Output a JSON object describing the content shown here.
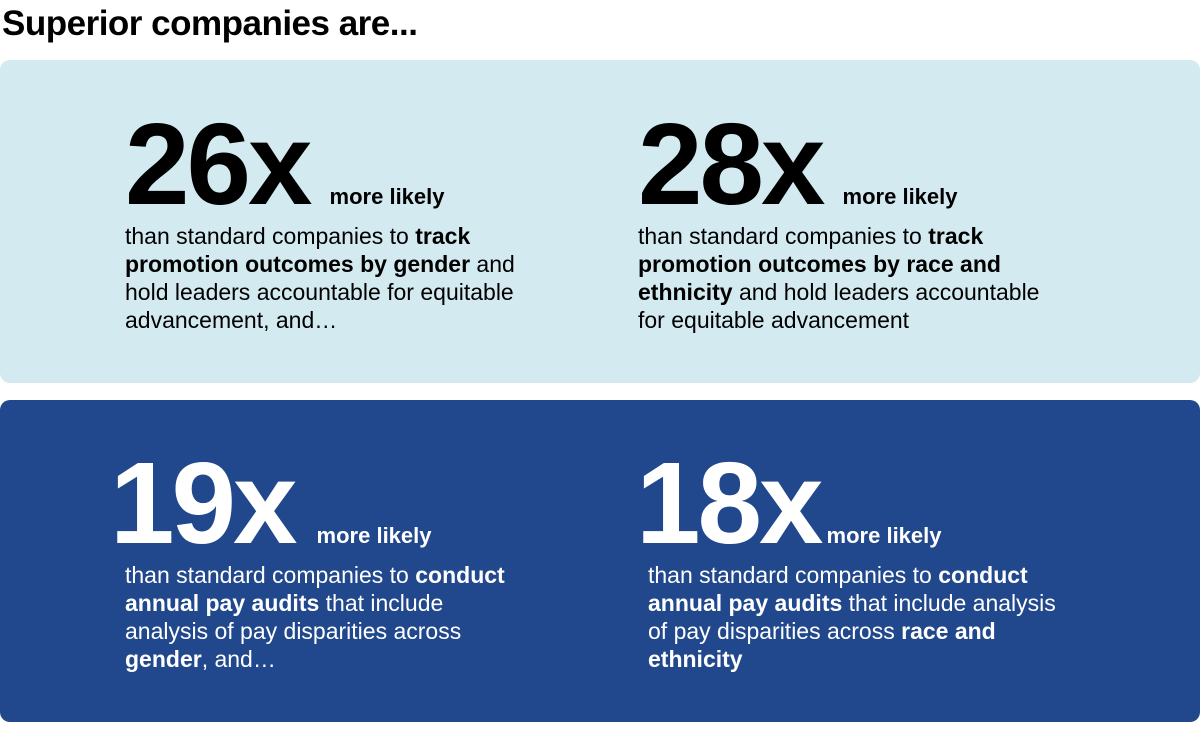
{
  "title": "Superior companies are...",
  "colors": {
    "light_panel": "#d2eaf0",
    "dark_panel": "#21488c"
  },
  "stats": [
    {
      "value": "26x",
      "suffix": "more likely",
      "lines": [
        [
          {
            "t": "than standard companies to ",
            "b": false
          },
          {
            "t": "track",
            "b": true
          }
        ],
        [
          {
            "t": "promotion outcomes by gender",
            "b": true
          },
          {
            "t": " and",
            "b": false
          }
        ],
        [
          {
            "t": "hold leaders accountable for equitable",
            "b": false
          }
        ],
        [
          {
            "t": "advancement, and…",
            "b": false
          }
        ]
      ]
    },
    {
      "value": "28x",
      "suffix": "more likely",
      "lines": [
        [
          {
            "t": "than standard companies to ",
            "b": false
          },
          {
            "t": "track",
            "b": true
          }
        ],
        [
          {
            "t": "promotion outcomes by race and",
            "b": true
          }
        ],
        [
          {
            "t": "ethnicity",
            "b": true
          },
          {
            "t": " and hold leaders accountable",
            "b": false
          }
        ],
        [
          {
            "t": "for equitable advancement",
            "b": false
          }
        ]
      ]
    },
    {
      "value": "19x",
      "suffix": "more likely",
      "lines": [
        [
          {
            "t": "than standard companies to ",
            "b": false
          },
          {
            "t": "conduct",
            "b": true
          }
        ],
        [
          {
            "t": "annual pay audits",
            "b": true
          },
          {
            "t": " that include",
            "b": false
          }
        ],
        [
          {
            "t": "analysis of pay disparities across",
            "b": false
          }
        ],
        [
          {
            "t": "gender",
            "b": true
          },
          {
            "t": ", and…",
            "b": false
          }
        ]
      ]
    },
    {
      "value": "18x",
      "suffix": "more likely",
      "lines": [
        [
          {
            "t": "than standard companies to ",
            "b": false
          },
          {
            "t": "conduct",
            "b": true
          }
        ],
        [
          {
            "t": "annual pay audits",
            "b": true
          },
          {
            "t": " that include analysis",
            "b": false
          }
        ],
        [
          {
            "t": "of pay disparities across ",
            "b": false
          },
          {
            "t": "race and",
            "b": true
          }
        ],
        [
          {
            "t": "ethnicity",
            "b": true
          }
        ]
      ]
    }
  ]
}
